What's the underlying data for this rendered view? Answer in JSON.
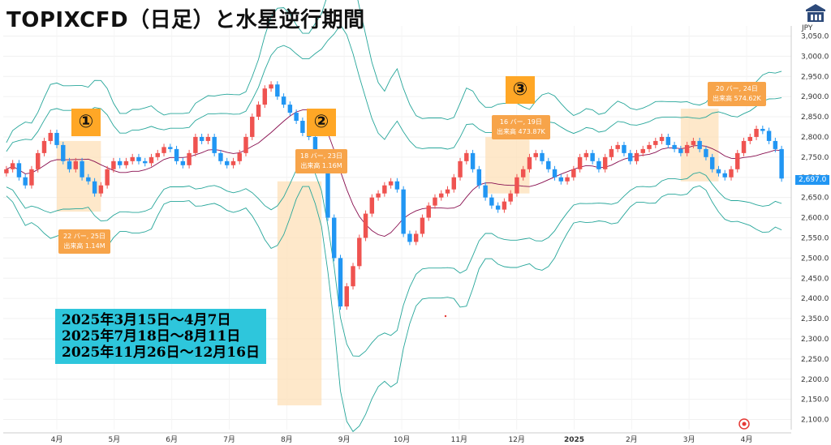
{
  "title": "TOPIXCFD（日足）と水星逆行期間",
  "y_unit": "JPY",
  "current_price": "2,697.0",
  "colors": {
    "up": "#ef5350",
    "down": "#2196f3",
    "band": "#26a69a",
    "mid": "#880e4f",
    "highlight": "#fde0b8",
    "note_bg": "#2ec6dc",
    "marker": "#ffa726"
  },
  "notes": [
    "2025年3月15日～4月7日",
    "2025年7月18日～8月11日",
    "2025年11月26日～12月16日"
  ],
  "markers": [
    "①",
    "②",
    "③"
  ],
  "tags": [
    {
      "line1": "22 バー, 25日",
      "line2": "出来高 1.14M"
    },
    {
      "line1": "18 バー, 23日",
      "line2": "出来高 1.16M"
    },
    {
      "line1": "16 バー, 19日",
      "line2": "出来高 473.87K"
    },
    {
      "line1": "20 バー, 24日",
      "line2": "出来高 574.62K"
    }
  ],
  "chart_data": {
    "type": "line",
    "title": "TOPIXCFD（日足）と水星逆行期間",
    "x_tick_labels": [
      "4月",
      "5月",
      "6月",
      "7月",
      "8月",
      "9月",
      "10月",
      "11月",
      "12月",
      "2025",
      "2月",
      "3月",
      "4月"
    ],
    "y_tick_labels": [
      "3,050.0",
      "3,000.0",
      "2,950.0",
      "2,900.0",
      "2,850.0",
      "2,800.0",
      "2,750.0",
      "2,700.0",
      "2,650.0",
      "2,600.0",
      "2,550.0",
      "2,500.0",
      "2,450.0",
      "2,400.0",
      "2,350.0",
      "2,300.0",
      "2,250.0",
      "2,200.0",
      "2,150.0",
      "2,100.0"
    ],
    "ylim": [
      2075,
      3075
    ],
    "series": [
      {
        "values": [
          2720,
          2735,
          2700,
          2680,
          2720,
          2760,
          2790,
          2810,
          2780,
          2740,
          2720,
          2740,
          2700,
          2690,
          2660,
          2680,
          2720,
          2740,
          2730,
          2740,
          2750,
          2740,
          2735,
          2750,
          2760,
          2775,
          2770,
          2740,
          2730,
          2760,
          2800,
          2790,
          2800,
          2760,
          2740,
          2730,
          2740,
          2760,
          2800,
          2850,
          2880,
          2920,
          2930,
          2900,
          2880,
          2860,
          2840,
          2810,
          2800,
          2760,
          2720,
          2600,
          2500,
          2380,
          2430,
          2480,
          2550,
          2610,
          2650,
          2660,
          2680,
          2690,
          2670,
          2560,
          2540,
          2560,
          2600,
          2630,
          2650,
          2660,
          2670,
          2700,
          2740,
          2760,
          2720,
          2680,
          2650,
          2630,
          2620,
          2640,
          2660,
          2700,
          2720,
          2750,
          2760,
          2740,
          2720,
          2700,
          2690,
          2700,
          2720,
          2750,
          2760,
          2740,
          2720,
          2750,
          2770,
          2780,
          2760,
          2740,
          2760,
          2770,
          2780,
          2790,
          2800,
          2780,
          2770,
          2760,
          2780,
          2790,
          2770,
          2750,
          2720,
          2710,
          2700,
          2720,
          2760,
          2790,
          2800,
          2820,
          2815,
          2790,
          2770,
          2697
        ]
      }
    ]
  }
}
